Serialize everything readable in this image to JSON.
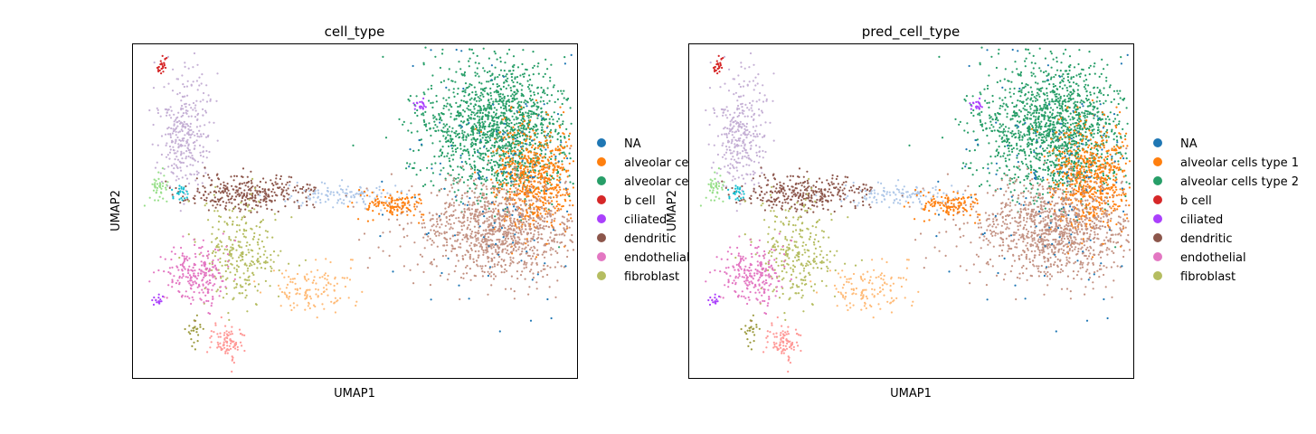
{
  "chart_data": [
    {
      "type": "scatter",
      "title": "cell_type",
      "xlabel": "UMAP1",
      "ylabel": "UMAP2",
      "grid": false,
      "legend_placement": "right",
      "legend": [
        {
          "label": "NA",
          "color": "#1f77b4"
        },
        {
          "label": "alveolar ce",
          "color": "#ff7f0e"
        },
        {
          "label": "alveolar ce",
          "color": "#279e68"
        },
        {
          "label": "b cell",
          "color": "#d62728"
        },
        {
          "label": "ciliated",
          "color": "#aa40fc"
        },
        {
          "label": "dendritic",
          "color": "#8c564b"
        },
        {
          "label": "endothelial",
          "color": "#e377c2"
        },
        {
          "label": "fibroblast",
          "color": "#b5bd61"
        }
      ]
    },
    {
      "type": "scatter",
      "title": "pred_cell_type",
      "xlabel": "UMAP1",
      "ylabel": "UMAP2",
      "grid": false,
      "legend_placement": "right",
      "legend": [
        {
          "label": "NA",
          "color": "#1f77b4"
        },
        {
          "label": "alveolar cells type 1",
          "color": "#ff7f0e"
        },
        {
          "label": "alveolar cells type 2",
          "color": "#279e68"
        },
        {
          "label": "b cell",
          "color": "#d62728"
        },
        {
          "label": "ciliated",
          "color": "#aa40fc"
        },
        {
          "label": "dendritic",
          "color": "#8c564b"
        },
        {
          "label": "endothelial",
          "color": "#e377c2"
        },
        {
          "label": "fibroblast",
          "color": "#b5bd61"
        }
      ]
    }
  ]
}
